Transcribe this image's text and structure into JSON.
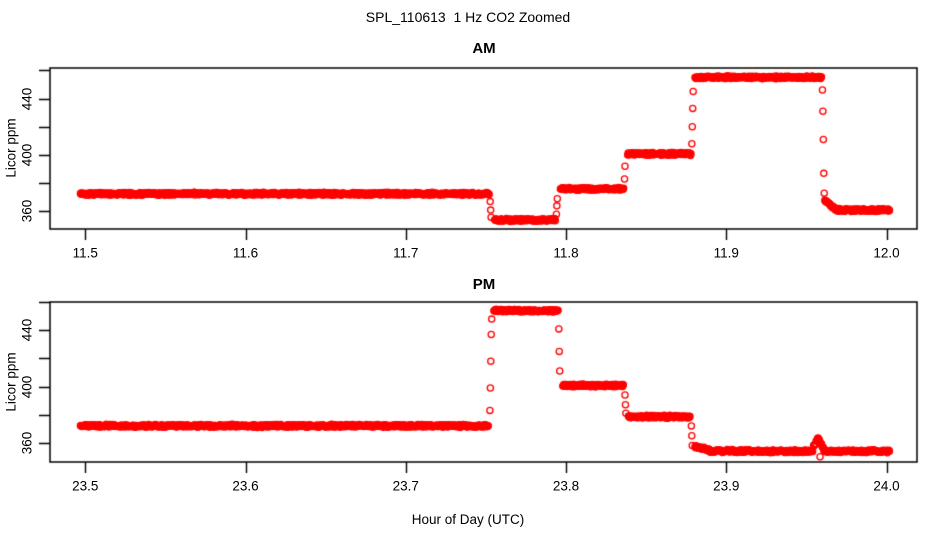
{
  "title": "SPL_110613  1 Hz CO2 Zoomed",
  "chart_data": {
    "type": "scatter",
    "marker": "open-circle",
    "point_color": "#ff0000",
    "axis_color": "#000000",
    "background_color": "#ffffff",
    "sample_rate_hz": 1,
    "grid": false,
    "legend": "none",
    "xlabel": "Hour of Day (UTC)",
    "ylabel": "Licor ppm",
    "noise_ppm": 1.15,
    "panels": [
      {
        "title": "AM",
        "xlim": [
          11.478,
          12.019
        ],
        "ylim": [
          347.6,
          461.6
        ],
        "xticks": {
          "values": [
            11.5,
            11.6,
            11.7,
            11.8,
            11.9,
            12.0
          ],
          "labels": [
            "11.5",
            "11.6",
            "11.7",
            "11.8",
            "11.9",
            "12.0"
          ]
        },
        "yticks": {
          "values": [
            360,
            380,
            400,
            420,
            440,
            460
          ],
          "labels": [
            "360",
            "",
            "400",
            "",
            "440",
            ""
          ]
        },
        "segments": [
          [
            11.497,
            11.752,
            372.5
          ],
          [
            11.7555,
            11.7935,
            354.0
          ],
          [
            11.7965,
            11.836,
            376.0
          ],
          [
            11.8385,
            11.878,
            400.8
          ],
          [
            11.8805,
            11.9595,
            455.0
          ],
          [
            11.9615,
            11.968,
            368.0,
            361.5
          ],
          [
            11.9685,
            12.002,
            361.0
          ]
        ],
        "transitions": [
          {
            "x": 11.7527,
            "ys": [
              367,
              361,
              356
            ]
          },
          {
            "x": 11.794,
            "ys": [
              358,
              364,
              369
            ]
          },
          {
            "x": 11.8365,
            "ys": [
              383,
              392
            ]
          },
          {
            "x": 11.8785,
            "ys": [
              408,
              420,
              433,
              445
            ]
          },
          {
            "x": 11.96,
            "ys": [
              446,
              431,
              411,
              387,
              373
            ]
          }
        ]
      },
      {
        "title": "PM",
        "xlim": [
          23.478,
          24.019
        ],
        "ylim": [
          346.3,
          460.15
        ],
        "xticks": {
          "values": [
            23.5,
            23.6,
            23.7,
            23.8,
            23.9,
            24.0
          ],
          "labels": [
            "23.5",
            "23.6",
            "23.7",
            "23.8",
            "23.9",
            "24.0"
          ]
        },
        "yticks": {
          "values": [
            360,
            380,
            400,
            420,
            440,
            460
          ],
          "labels": [
            "360",
            "",
            "400",
            "",
            "440",
            ""
          ]
        },
        "segments": [
          [
            23.497,
            23.7515,
            372.0
          ],
          [
            23.755,
            23.795,
            454.0
          ],
          [
            23.798,
            23.836,
            400.8
          ],
          [
            23.839,
            23.8775,
            378.5
          ],
          [
            23.8805,
            23.89,
            357.5,
            354.5
          ],
          [
            23.89,
            23.954,
            354.0
          ],
          [
            23.9545,
            23.9575,
            357.5,
            363.5
          ],
          [
            23.9575,
            23.961,
            363.0,
            355.0
          ],
          [
            23.9615,
            24.002,
            354.0
          ]
        ],
        "transitions": [
          {
            "x": 23.7525,
            "ys": [
              383,
              399,
              418,
              437,
              448
            ]
          },
          {
            "x": 23.7955,
            "ys": [
              441,
              425,
              411
            ]
          },
          {
            "x": 23.8368,
            "ys": [
              394,
              387,
              381
            ]
          },
          {
            "x": 23.8782,
            "ys": [
              372,
              365,
              358
            ]
          },
          {
            "x": 23.9585,
            "ys": [
              350
            ]
          }
        ]
      }
    ]
  }
}
